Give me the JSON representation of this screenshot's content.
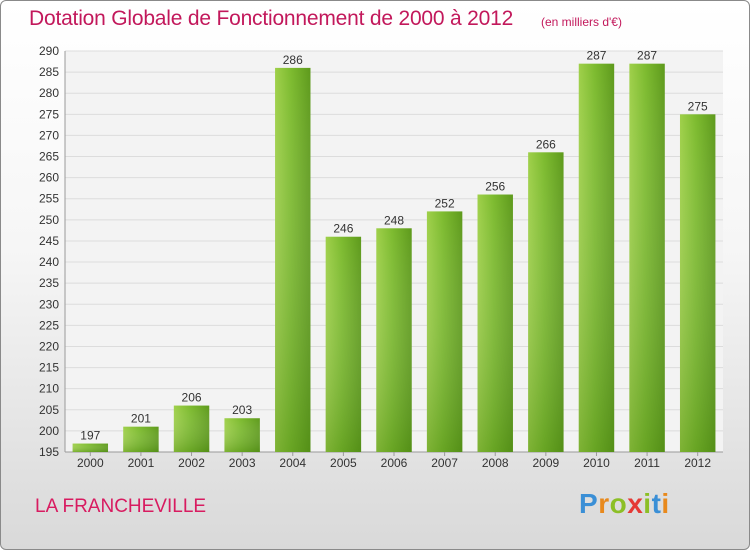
{
  "chart_data": {
    "type": "bar",
    "title": "Dotation Globale de Fonctionnement de 2000 à 2012",
    "unit_label": "(en milliers d'€)",
    "categories": [
      "2000",
      "2001",
      "2002",
      "2003",
      "2004",
      "2005",
      "2006",
      "2007",
      "2008",
      "2009",
      "2010",
      "2011",
      "2012"
    ],
    "values": [
      197,
      201,
      206,
      203,
      286,
      246,
      248,
      252,
      256,
      266,
      287,
      287,
      275
    ],
    "data_labels": [
      "197",
      "201",
      "206",
      "203",
      "286",
      "246",
      "248",
      "252",
      "256",
      "266",
      "287",
      "287",
      "275"
    ],
    "ylim": [
      195,
      290
    ],
    "y_ticks": [
      "195",
      "200",
      "205",
      "210",
      "215",
      "220",
      "225",
      "230",
      "235",
      "240",
      "245",
      "250",
      "255",
      "260",
      "265",
      "270",
      "275",
      "280",
      "285",
      "290"
    ],
    "grid": true,
    "bar_color": "#7cb82f",
    "xlabel": "",
    "ylabel": ""
  },
  "footer": {
    "place_name": "LA FRANCHEVILLE",
    "logo_text": "Proxiti",
    "logo_letters": [
      {
        "ch": "P",
        "color": "#3a8fd6"
      },
      {
        "ch": "r",
        "color": "#e8891c"
      },
      {
        "ch": "o",
        "color": "#8cbf26"
      },
      {
        "ch": "x",
        "color": "#e53935"
      },
      {
        "ch": "i",
        "color": "#8cbf26"
      },
      {
        "ch": "t",
        "color": "#3a8fd6"
      },
      {
        "ch": "i",
        "color": "#e8891c"
      }
    ]
  }
}
